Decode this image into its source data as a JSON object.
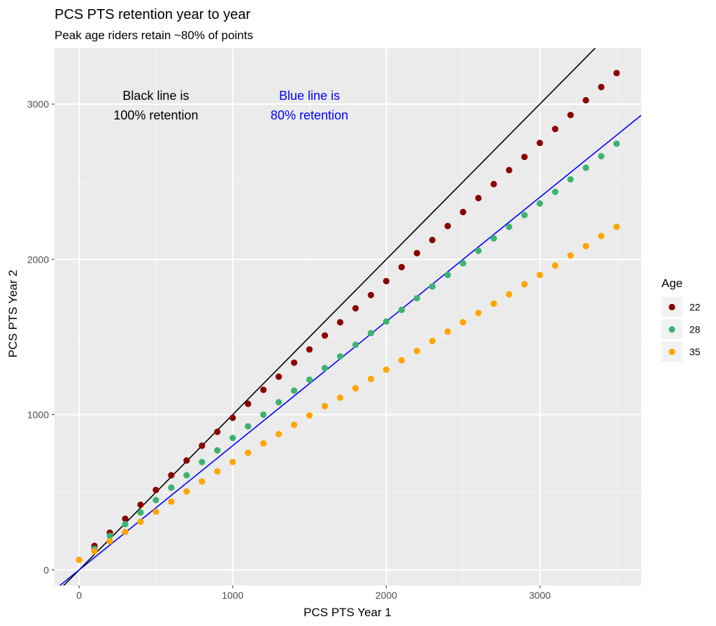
{
  "chart_data": {
    "type": "scatter",
    "title": "PCS PTS retention year to year",
    "subtitle": "Peak age riders retain ~80% of points",
    "xlabel": "PCS PTS Year 1",
    "ylabel": "PCS PTS Year 2",
    "xlim": [
      -160,
      3660
    ],
    "ylim": [
      -100,
      3360
    ],
    "x_ticks": [
      0,
      1000,
      2000,
      3000
    ],
    "y_ticks": [
      0,
      1000,
      2000,
      3000
    ],
    "grid": true,
    "legend": {
      "title": "Age",
      "position": "right"
    },
    "reference_lines": [
      {
        "color": "#000000",
        "slope": 1.0,
        "intercept": 0
      },
      {
        "color": "#0000ff",
        "slope": 0.8,
        "intercept": 0
      }
    ],
    "annotations": [
      {
        "lines": [
          "Black line is",
          "100% retention"
        ],
        "color": "#000000",
        "x": 500,
        "y": 2990
      },
      {
        "lines": [
          "Blue line is",
          "80% retention"
        ],
        "color": "#0000ff",
        "x": 1500,
        "y": 2990
      }
    ],
    "series": [
      {
        "name": "22",
        "color": "#8b0000",
        "x": [
          100,
          200,
          300,
          400,
          500,
          600,
          700,
          800,
          900,
          1000,
          1100,
          1200,
          1300,
          1400,
          1500,
          1600,
          1700,
          1800,
          1900,
          2000,
          2100,
          2200,
          2300,
          2400,
          2500,
          2600,
          2700,
          2800,
          2900,
          3000,
          3100,
          3200,
          3300,
          3400,
          3500
        ],
        "y": [
          155,
          240,
          330,
          420,
          515,
          610,
          705,
          800,
          890,
          980,
          1070,
          1160,
          1245,
          1335,
          1420,
          1510,
          1595,
          1685,
          1770,
          1860,
          1950,
          2040,
          2125,
          2215,
          2305,
          2395,
          2485,
          2575,
          2660,
          2750,
          2840,
          2930,
          3025,
          3110,
          3200
        ]
      },
      {
        "name": "28",
        "color": "#3cb371",
        "x": [
          100,
          200,
          300,
          400,
          500,
          600,
          700,
          800,
          900,
          1000,
          1100,
          1200,
          1300,
          1400,
          1500,
          1600,
          1700,
          1800,
          1900,
          2000,
          2100,
          2200,
          2300,
          2400,
          2500,
          2600,
          2700,
          2800,
          2900,
          3000,
          3100,
          3200,
          3300,
          3400,
          3500
        ],
        "y": [
          135,
          220,
          295,
          370,
          450,
          530,
          610,
          695,
          770,
          850,
          925,
          1000,
          1080,
          1155,
          1225,
          1300,
          1375,
          1450,
          1525,
          1600,
          1675,
          1750,
          1825,
          1900,
          1975,
          2055,
          2135,
          2210,
          2285,
          2360,
          2435,
          2515,
          2590,
          2665,
          2745
        ]
      },
      {
        "name": "35",
        "color": "#ffa500",
        "x": [
          0,
          100,
          200,
          300,
          400,
          500,
          600,
          700,
          800,
          900,
          1000,
          1100,
          1200,
          1300,
          1400,
          1500,
          1600,
          1700,
          1800,
          1900,
          2000,
          2100,
          2200,
          2300,
          2400,
          2500,
          2600,
          2700,
          2800,
          2900,
          3000,
          3100,
          3200,
          3300,
          3400,
          3500
        ],
        "y": [
          65,
          120,
          185,
          245,
          310,
          375,
          440,
          505,
          570,
          635,
          695,
          755,
          815,
          875,
          935,
          995,
          1055,
          1110,
          1170,
          1230,
          1290,
          1350,
          1410,
          1475,
          1535,
          1595,
          1655,
          1715,
          1775,
          1840,
          1900,
          1960,
          2025,
          2085,
          2150,
          2210
        ]
      }
    ]
  }
}
